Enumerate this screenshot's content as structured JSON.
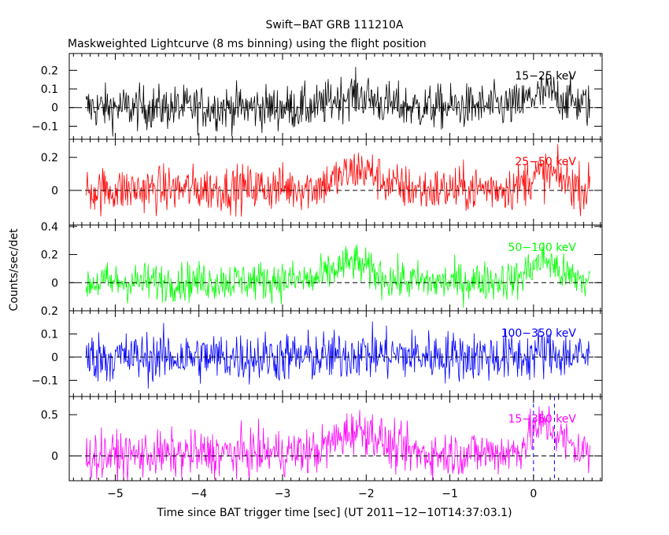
{
  "chart_data": {
    "type": "line",
    "title": "Swift−BAT GRB 111210A",
    "subtitle": "Maskweighted Lightcurve (8 ms binning) using the flight position",
    "xlabel": "Time since BAT trigger time [sec] (UT 2011−12−10T14:37:03.1)",
    "ylabel": "Counts/sec/det",
    "xlim": [
      -5.55,
      0.82
    ],
    "x_ticks": [
      -5,
      -4,
      -3,
      -2,
      -1,
      0
    ],
    "x_tick_labels": [
      "−5",
      "−4",
      "−3",
      "−2",
      "−1",
      "0"
    ],
    "binning_sec": 0.008,
    "data_range": [
      -5.35,
      0.68
    ],
    "dashed_vlines": [
      0.0,
      0.25
    ],
    "grid": false,
    "legend": "none",
    "panels": [
      {
        "name": "15−25 keV",
        "color": "#000000",
        "ylim": [
          -0.17,
          0.29
        ],
        "y_ticks": [
          -0.1,
          0,
          0.1,
          0.2
        ],
        "y_tick_labels": [
          "−0.1",
          "0",
          "0.1",
          "0.2"
        ],
        "noise": 0.06,
        "baseline": [
          [
            -5.35,
            0.0
          ],
          [
            -2.6,
            0.0
          ],
          [
            -2.4,
            0.04
          ],
          [
            -2.2,
            0.07
          ],
          [
            -2.0,
            0.06
          ],
          [
            -1.8,
            0.02
          ],
          [
            -1.4,
            0.0
          ],
          [
            -0.2,
            0.01
          ],
          [
            0.0,
            0.06
          ],
          [
            0.2,
            0.08
          ],
          [
            0.4,
            0.04
          ],
          [
            0.68,
            0.01
          ]
        ]
      },
      {
        "name": "25−50 keV",
        "color": "#ff0000",
        "ylim": [
          -0.21,
          0.31
        ],
        "y_ticks": [
          0,
          0.2
        ],
        "y_tick_labels": [
          "0",
          "0.2"
        ],
        "noise": 0.07,
        "baseline": [
          [
            -5.35,
            0.0
          ],
          [
            -2.6,
            0.02
          ],
          [
            -2.35,
            0.07
          ],
          [
            -2.1,
            0.13
          ],
          [
            -1.95,
            0.11
          ],
          [
            -1.7,
            0.03
          ],
          [
            -1.3,
            0.0
          ],
          [
            -0.2,
            0.02
          ],
          [
            0.0,
            0.09
          ],
          [
            0.2,
            0.1
          ],
          [
            0.45,
            0.04
          ],
          [
            0.68,
            0.0
          ]
        ]
      },
      {
        "name": "50−100 keV",
        "color": "#00ff00",
        "ylim": [
          -0.2,
          0.41
        ],
        "y_ticks": [
          0,
          0.2,
          0.4
        ],
        "y_tick_labels": [
          "0",
          "0.2",
          "0.4"
        ],
        "noise": 0.07,
        "baseline": [
          [
            -5.35,
            0.0
          ],
          [
            -2.6,
            0.02
          ],
          [
            -2.35,
            0.1
          ],
          [
            -2.15,
            0.15
          ],
          [
            -1.95,
            0.08
          ],
          [
            -1.7,
            0.02
          ],
          [
            -1.2,
            0.0
          ],
          [
            -0.2,
            0.02
          ],
          [
            0.0,
            0.12
          ],
          [
            0.15,
            0.17
          ],
          [
            0.35,
            0.06
          ],
          [
            0.68,
            0.0
          ]
        ]
      },
      {
        "name": "100−350 keV",
        "color": "#0000ff",
        "ylim": [
          -0.17,
          0.2
        ],
        "y_ticks": [
          -0.1,
          0,
          0.1,
          0.2
        ],
        "y_tick_labels": [
          "−0.1",
          "0",
          "0.1",
          "0.2"
        ],
        "noise": 0.055,
        "baseline": [
          [
            -5.35,
            0.0
          ],
          [
            -2.4,
            0.0
          ],
          [
            -2.1,
            0.02
          ],
          [
            -1.9,
            0.01
          ],
          [
            -0.1,
            0.0
          ],
          [
            0.1,
            0.02
          ],
          [
            0.4,
            0.01
          ],
          [
            0.68,
            0.0
          ]
        ]
      },
      {
        "name": "15−350 keV",
        "color": "#ff00ff",
        "ylim": [
          -0.3,
          0.72
        ],
        "y_ticks": [
          0,
          0.5
        ],
        "y_tick_labels": [
          "0",
          "0.5"
        ],
        "noise": 0.14,
        "baseline": [
          [
            -5.35,
            0.0
          ],
          [
            -2.6,
            0.05
          ],
          [
            -2.35,
            0.2
          ],
          [
            -2.15,
            0.32
          ],
          [
            -1.95,
            0.3
          ],
          [
            -1.7,
            0.1
          ],
          [
            -1.3,
            0.02
          ],
          [
            -0.2,
            0.05
          ],
          [
            0.0,
            0.3
          ],
          [
            0.15,
            0.4
          ],
          [
            0.4,
            0.15
          ],
          [
            0.68,
            0.02
          ]
        ]
      }
    ]
  }
}
